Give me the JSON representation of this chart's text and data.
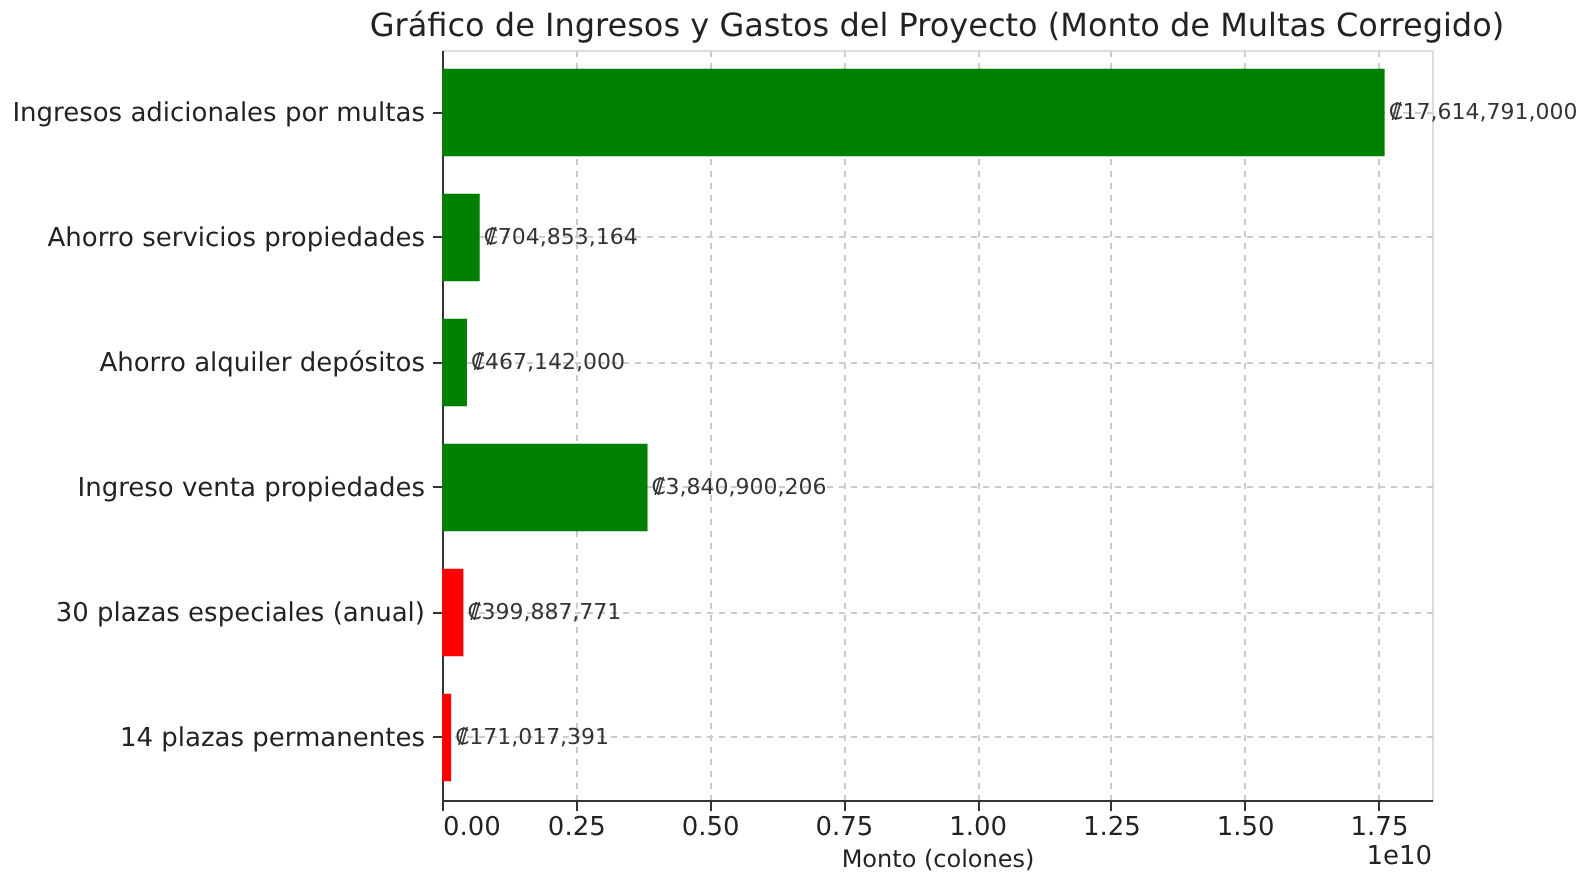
{
  "chart_data": {
    "type": "bar",
    "orientation": "horizontal",
    "title": "Gráfico de Ingresos y Gastos del Proyecto (Monto de Multas Corregido)",
    "xlabel": "Monto (colones)",
    "categories": [
      "Ingresos adicionales por multas",
      "Ahorro servicios propiedades",
      "Ahorro alquiler depósitos",
      "Ingreso venta propiedades",
      "30 plazas especiales (anual)",
      "14 plazas permanentes"
    ],
    "values": [
      1.7614791,
      0.0704853164,
      0.0467142,
      0.3840900206,
      0.0399887771,
      0.0171017391
    ],
    "colors": [
      "#008000",
      "#008000",
      "#008000",
      "#008000",
      "#ff0000",
      "#ff0000"
    ],
    "xlim": [
      0,
      1.85
    ],
    "xticks": [
      {
        "value": 0,
        "label": "0.00"
      },
      {
        "value": 0.25,
        "label": "0.25"
      },
      {
        "value": 0.5,
        "label": "0.50"
      },
      {
        "value": 0.75,
        "label": "0.75"
      },
      {
        "value": 1,
        "label": "1.00"
      },
      {
        "value": 1.25,
        "label": "1.25"
      },
      {
        "value": 1.5,
        "label": "1.50"
      },
      {
        "value": 1.75,
        "label": "1.75"
      }
    ],
    "annotations": [
      "1e10",
      {
        "text": "₡17,614,791,000",
        "x": 1.7614791,
        "y": "Ingresos adicionales por multas"
      },
      {
        "text": "₡704,853,164",
        "x": 0.0704853164,
        "y": "Ahorro servicios propiedades"
      },
      {
        "text": "₡467,142,000",
        "x": 0.0467142,
        "y": "Ahorro alquiler depósitos"
      },
      {
        "text": "₡3,840,900,206",
        "x": 0.3840900206,
        "y": "Ingreso venta propiedades"
      },
      {
        "text": "₡399,887,771",
        "x": 0.0399887771,
        "y": "30 plazas especiales (anual)"
      },
      {
        "text": "₡171,017,391",
        "x": 0.0171017391,
        "y": "14 plazas permanentes"
      }
    ],
    "grid": true
  }
}
